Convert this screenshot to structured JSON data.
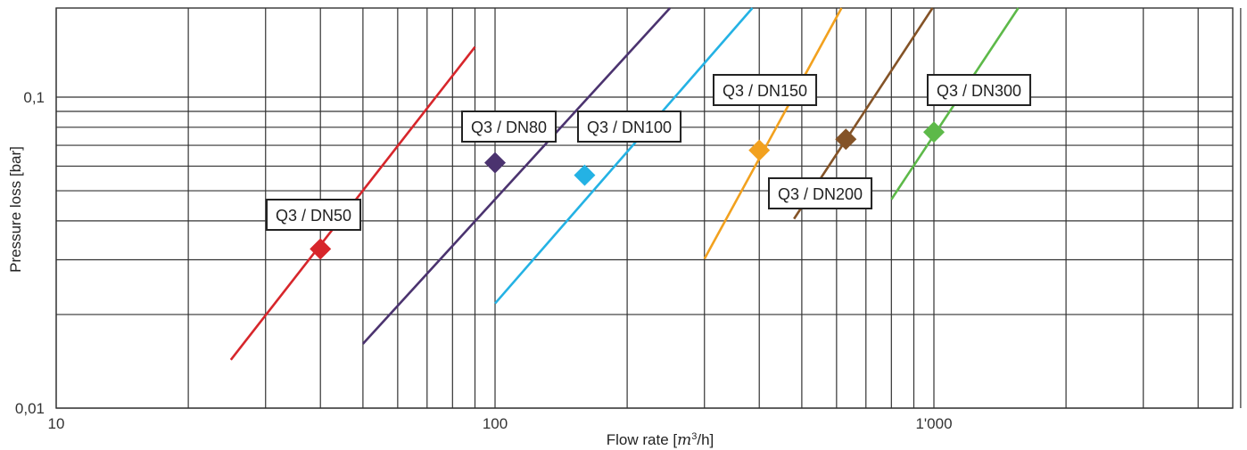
{
  "chart_data": {
    "type": "line",
    "title": "",
    "xlabel": "Flow rate [",
    "xlabel_m": "m",
    "xlabel_exp": "3",
    "xlabel_tail": "/h]",
    "ylabel": "Pressure loss [bar]",
    "xscale": "log",
    "yscale": "log",
    "xlim": [
      10,
      6000
    ],
    "ylim": [
      0.01,
      0.2
    ],
    "x_ticks": [
      {
        "value": 10,
        "label": "10"
      },
      {
        "value": 100,
        "label": "100"
      },
      {
        "value": 1000,
        "label": "1'000"
      }
    ],
    "y_ticks": [
      {
        "value": 0.01,
        "label": "0,01"
      },
      {
        "value": 0.1,
        "label": "0,1"
      }
    ],
    "grid": true,
    "legend": "none",
    "series": [
      {
        "name": "Q3 / DN50",
        "color": "#d7262b",
        "x": [
          25,
          90
        ],
        "y": [
          0.0143,
          0.145
        ],
        "marker": {
          "x": 40,
          "y": 0.0325
        }
      },
      {
        "name": "Q3 / DN80",
        "color": "#4b336f",
        "x": [
          50,
          260
        ],
        "y": [
          0.0161,
          0.205
        ],
        "marker": {
          "x": 100,
          "y": 0.0615
        }
      },
      {
        "name": "Q3 / DN100",
        "color": "#24b2e4",
        "x": [
          100,
          400
        ],
        "y": [
          0.0217,
          0.205
        ],
        "marker": {
          "x": 160,
          "y": 0.0561
        }
      },
      {
        "name": "Q3 / DN150",
        "color": "#f2a11e",
        "x": [
          300,
          630
        ],
        "y": [
          0.0302,
          0.205
        ],
        "marker": {
          "x": 400,
          "y": 0.0675
        }
      },
      {
        "name": "Q3 / DN200",
        "color": "#845327",
        "x": [
          480,
          1020
        ],
        "y": [
          0.0406,
          0.205
        ],
        "marker": {
          "x": 630,
          "y": 0.0732
        }
      },
      {
        "name": "Q3 / DN300",
        "color": "#5db949",
        "x": [
          800,
          1600
        ],
        "y": [
          0.0469,
          0.205
        ],
        "marker": {
          "x": 1000,
          "y": 0.0772
        }
      }
    ],
    "annotations": [
      {
        "text": "Q3 / DN50",
        "series": "Q3 / DN50"
      },
      {
        "text": "Q3 / DN80",
        "series": "Q3 / DN80"
      },
      {
        "text": "Q3 / DN100",
        "series": "Q3 / DN100"
      },
      {
        "text": "Q3 / DN150",
        "series": "Q3 / DN150"
      },
      {
        "text": "Q3 / DN200",
        "series": "Q3 / DN200"
      },
      {
        "text": "Q3 / DN300",
        "series": "Q3 / DN300"
      }
    ]
  }
}
